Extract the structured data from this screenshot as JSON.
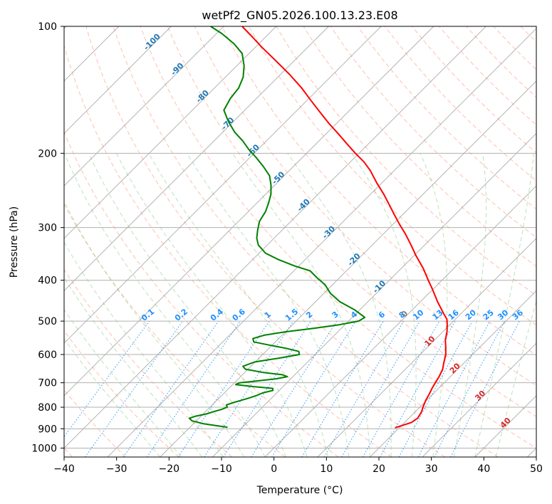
{
  "chart_data": {
    "type": "line",
    "title": "wetPf2_GN05.2026.100.13.23.E08",
    "xlabel": "Temperature (°C)",
    "ylabel": "Pressure (hPa)",
    "xlim": [
      -40,
      50
    ],
    "ylim": [
      1050,
      100
    ],
    "y_scale": "log",
    "grid": true,
    "x_ticks": [
      "−40",
      "−30",
      "−20",
      "−10",
      "0",
      "10",
      "20",
      "30",
      "40",
      "50"
    ],
    "x_tick_values": [
      -40,
      -30,
      -20,
      -10,
      0,
      10,
      20,
      30,
      40,
      50
    ],
    "y_ticks": [
      "100",
      "200",
      "300",
      "400",
      "500",
      "600",
      "700",
      "800",
      "900",
      "1000"
    ],
    "y_tick_values": [
      100,
      200,
      300,
      400,
      500,
      600,
      700,
      800,
      900,
      1000
    ],
    "skew": 1.0,
    "isotherm_labels": [
      "-100",
      "-90",
      "-80",
      "-70",
      "-60",
      "-50",
      "-40",
      "-30",
      "-20",
      "-10",
      "0",
      "10",
      "20",
      "30",
      "40"
    ],
    "isotherm_label_values": [
      -100,
      -90,
      -80,
      -70,
      -60,
      -50,
      -40,
      -30,
      -20,
      -10,
      0,
      10,
      20,
      30,
      40
    ],
    "mixing_ratio_labels": [
      "0.1",
      "0.2",
      "0.4",
      "0.6",
      "1",
      "1.5",
      "2",
      "3",
      "4",
      "6",
      "8",
      "10",
      "13",
      "16",
      "20",
      "25",
      "30",
      "36"
    ],
    "mixing_ratio_values": [
      0.1,
      0.2,
      0.4,
      0.6,
      1,
      1.5,
      2,
      3,
      4,
      6,
      8,
      10,
      13,
      16,
      20,
      25,
      30,
      36
    ],
    "series": [
      {
        "color": "#ff0000",
        "points": [
          [
            895,
            19.2
          ],
          [
            870,
            21.3
          ],
          [
            850,
            21.7
          ],
          [
            820,
            21.2
          ],
          [
            800,
            20.6
          ],
          [
            770,
            19.8
          ],
          [
            745,
            19.3
          ],
          [
            720,
            18.7
          ],
          [
            700,
            18.3
          ],
          [
            675,
            17.8
          ],
          [
            650,
            17.1
          ],
          [
            630,
            16.2
          ],
          [
            600,
            14.9
          ],
          [
            575,
            13.4
          ],
          [
            555,
            12.1
          ],
          [
            530,
            10.8
          ],
          [
            510,
            9.5
          ],
          [
            495,
            8.4
          ],
          [
            480,
            6.7
          ],
          [
            450,
            3.3
          ],
          [
            420,
            -0.1
          ],
          [
            400,
            -2.6
          ],
          [
            375,
            -5.8
          ],
          [
            350,
            -9.6
          ],
          [
            330,
            -12.6
          ],
          [
            310,
            -15.9
          ],
          [
            295,
            -18.7
          ],
          [
            280,
            -21.5
          ],
          [
            265,
            -24.4
          ],
          [
            250,
            -27.5
          ],
          [
            235,
            -31.0
          ],
          [
            220,
            -34.5
          ],
          [
            210,
            -37.3
          ],
          [
            200,
            -40.7
          ],
          [
            190,
            -44.1
          ],
          [
            180,
            -47.6
          ],
          [
            170,
            -51.4
          ],
          [
            160,
            -55.2
          ],
          [
            150,
            -59.2
          ],
          [
            140,
            -63.4
          ],
          [
            130,
            -68.3
          ],
          [
            120,
            -73.9
          ],
          [
            112,
            -78.8
          ],
          [
            106,
            -82.5
          ],
          [
            100,
            -86.5
          ]
        ]
      },
      {
        "color": "#008000",
        "points": [
          [
            893,
            -12.8
          ],
          [
            885,
            -15.2
          ],
          [
            875,
            -18.2
          ],
          [
            862,
            -20.8
          ],
          [
            850,
            -21.8
          ],
          [
            840,
            -21.0
          ],
          [
            830,
            -19.4
          ],
          [
            820,
            -18.5
          ],
          [
            810,
            -17.4
          ],
          [
            800,
            -16.7
          ],
          [
            790,
            -17.3
          ],
          [
            780,
            -16.4
          ],
          [
            770,
            -15.3
          ],
          [
            760,
            -14.2
          ],
          [
            750,
            -13.3
          ],
          [
            740,
            -12.7
          ],
          [
            730,
            -11.2
          ],
          [
            722,
            -11.6
          ],
          [
            715,
            -15.6
          ],
          [
            707,
            -19.4
          ],
          [
            700,
            -19.0
          ],
          [
            693,
            -16.0
          ],
          [
            685,
            -12.8
          ],
          [
            677,
            -11.1
          ],
          [
            670,
            -12.4
          ],
          [
            662,
            -16.4
          ],
          [
            650,
            -20.5
          ],
          [
            640,
            -21.5
          ],
          [
            625,
            -20.1
          ],
          [
            612,
            -16.2
          ],
          [
            600,
            -13.0
          ],
          [
            590,
            -13.7
          ],
          [
            580,
            -16.7
          ],
          [
            570,
            -20.5
          ],
          [
            560,
            -24.1
          ],
          [
            550,
            -24.9
          ],
          [
            540,
            -23.4
          ],
          [
            530,
            -20.0
          ],
          [
            520,
            -15.3
          ],
          [
            510,
            -11.1
          ],
          [
            500,
            -8.1
          ],
          [
            490,
            -7.6
          ],
          [
            470,
            -11.0
          ],
          [
            450,
            -15.3
          ],
          [
            430,
            -18.7
          ],
          [
            410,
            -21.4
          ],
          [
            395,
            -24.2
          ],
          [
            380,
            -26.9
          ],
          [
            370,
            -30.8
          ],
          [
            358,
            -34.9
          ],
          [
            345,
            -38.8
          ],
          [
            330,
            -41.7
          ],
          [
            318,
            -43.3
          ],
          [
            305,
            -44.6
          ],
          [
            290,
            -46.0
          ],
          [
            275,
            -46.7
          ],
          [
            262,
            -47.8
          ],
          [
            250,
            -49.0
          ],
          [
            238,
            -50.7
          ],
          [
            226,
            -52.8
          ],
          [
            215,
            -55.7
          ],
          [
            205,
            -58.7
          ],
          [
            196,
            -61.7
          ],
          [
            187,
            -64.5
          ],
          [
            178,
            -67.8
          ],
          [
            168,
            -71.0
          ],
          [
            158,
            -74.0
          ],
          [
            148,
            -75.0
          ],
          [
            140,
            -75.4
          ],
          [
            132,
            -76.6
          ],
          [
            124,
            -78.6
          ],
          [
            116,
            -81.3
          ],
          [
            110,
            -84.7
          ],
          [
            104,
            -89.0
          ],
          [
            100,
            -92.5
          ]
        ]
      }
    ]
  },
  "colors": {
    "temperature": "#ff0000",
    "dewpoint": "#008000",
    "isotherm": "#808080",
    "isotherm_label": "#1f77b4",
    "dry_adiabat": "#ff8c69",
    "moist_adiabat": "#6abf69",
    "mixing_ratio": "#1e90ff",
    "isotherm_label_warm": "#d62728",
    "isotherm_label_zero": "#808080",
    "grid": "#b0b0b0"
  }
}
